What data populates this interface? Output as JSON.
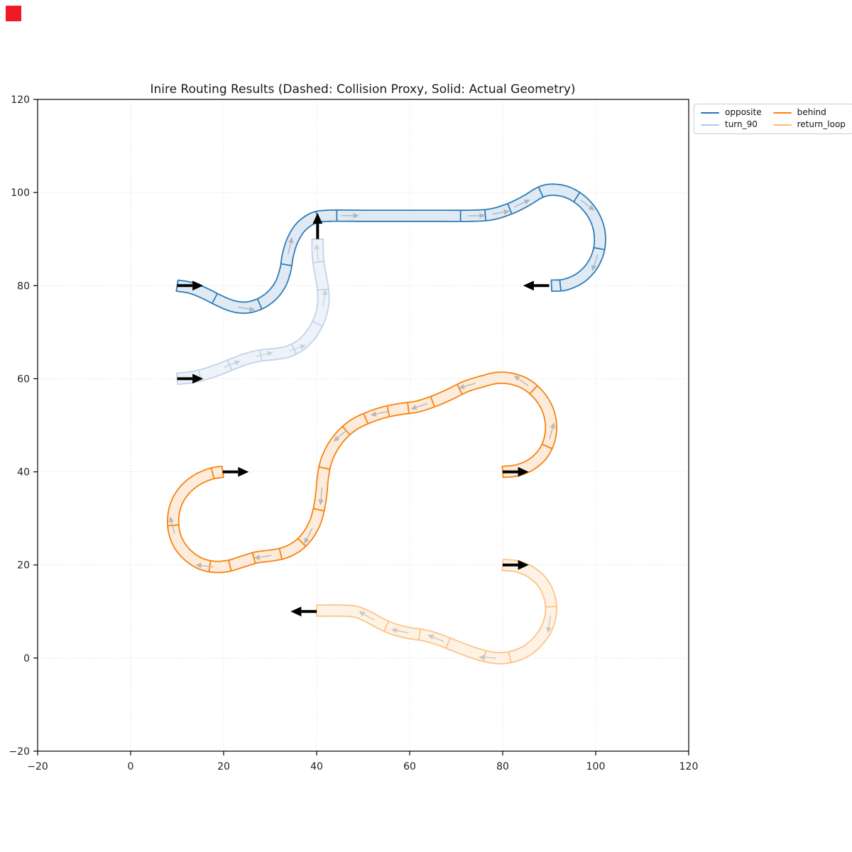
{
  "title": "Inire Routing Results (Dashed: Collision Proxy, Solid: Actual Geometry)",
  "marker": {
    "name": "red-corner-marker",
    "color": "#ee1b24"
  },
  "legend": {
    "position": "upper-right-outside",
    "entries": [
      {
        "label": "opposite",
        "color": "#1f77b4"
      },
      {
        "label": "turn_90",
        "color": "#aec7e8"
      },
      {
        "label": "behind",
        "color": "#ff7f0e"
      },
      {
        "label": "return_loop",
        "color": "#ffbb78"
      }
    ]
  },
  "chart_data": {
    "type": "line",
    "title": "Inire Routing Results (Dashed: Collision Proxy, Solid: Actual Geometry)",
    "xlabel": "",
    "ylabel": "",
    "xlim": [
      -20,
      120
    ],
    "ylim": [
      -20,
      120
    ],
    "x_ticks": [
      -20,
      0,
      20,
      40,
      60,
      80,
      100,
      120
    ],
    "y_ticks": [
      -20,
      0,
      20,
      40,
      60,
      80,
      100,
      120
    ],
    "x_tick_labels": [
      "−20",
      "0",
      "20",
      "40",
      "60",
      "80",
      "100",
      "120"
    ],
    "y_tick_labels": [
      "−20",
      "0",
      "20",
      "40",
      "60",
      "80",
      "100",
      "120"
    ],
    "grid": "dotted",
    "pose_arrow": {
      "color": "#000000",
      "length": 5.6,
      "head_length": 2.3,
      "head_half_width": 1.05
    },
    "routes": [
      {
        "name": "opposite",
        "stroke": "#2e7cb8",
        "fill": "#dfeaf5",
        "arrow_color": "#b2b6ba",
        "tube_width": 2.4,
        "start_pose": {
          "x": 10,
          "y": 80,
          "heading_deg": 0
        },
        "end_pose": {
          "x": 90,
          "y": 80,
          "heading_deg": 180
        },
        "waypoints": [
          [
            10,
            80
          ],
          [
            13,
            79.5
          ],
          [
            16,
            78.3
          ],
          [
            19,
            76.8
          ],
          [
            22,
            75.6
          ],
          [
            25,
            75.3
          ],
          [
            28,
            76.2
          ],
          [
            30.5,
            78
          ],
          [
            32.3,
            80.5
          ],
          [
            33.3,
            83.5
          ],
          [
            33.8,
            86.5
          ],
          [
            34.8,
            89.7
          ],
          [
            36.6,
            92.6
          ],
          [
            39.3,
            94.5
          ],
          [
            42.5,
            95
          ],
          [
            50,
            95
          ],
          [
            58,
            95
          ],
          [
            66,
            95
          ],
          [
            73,
            95
          ],
          [
            77.5,
            95.3
          ],
          [
            81.5,
            96.5
          ],
          [
            85,
            98.2
          ],
          [
            88,
            100
          ],
          [
            90.5,
            100.6
          ],
          [
            93.8,
            100.1
          ],
          [
            97,
            98.2
          ],
          [
            99.5,
            95.2
          ],
          [
            100.8,
            91.6
          ],
          [
            100.7,
            87.7
          ],
          [
            99.2,
            84.2
          ],
          [
            96.6,
            81.6
          ],
          [
            93.4,
            80.2
          ],
          [
            90.5,
            80
          ]
        ],
        "dividers": [
          0.068,
          0.148,
          0.232,
          0.335,
          0.368,
          0.578,
          0.62,
          0.663,
          0.723,
          0.787,
          0.888,
          0.985
        ],
        "arrows": [
          0.11,
          0.25,
          0.376,
          0.59,
          0.632,
          0.671,
          0.795,
          0.898
        ]
      },
      {
        "name": "turn_90",
        "stroke": "#c2d3eb",
        "fill": "#eef3fa",
        "arrow_color": "#ccd2dc",
        "tube_width": 2.4,
        "start_pose": {
          "x": 10,
          "y": 60,
          "heading_deg": 0
        },
        "end_pose": {
          "x": 40.2,
          "y": 90,
          "heading_deg": 90
        },
        "waypoints": [
          [
            10,
            60
          ],
          [
            13,
            60.3
          ],
          [
            16,
            61
          ],
          [
            19,
            62
          ],
          [
            22,
            63.2
          ],
          [
            25,
            64.3
          ],
          [
            28,
            65
          ],
          [
            31,
            65.3
          ],
          [
            34,
            65.9
          ],
          [
            36.8,
            67.4
          ],
          [
            39,
            69.8
          ],
          [
            40.6,
            72.8
          ],
          [
            41.4,
            76
          ],
          [
            41.4,
            79
          ],
          [
            40.9,
            82
          ],
          [
            40.4,
            85
          ],
          [
            40.2,
            87.5
          ],
          [
            40.2,
            90
          ]
        ],
        "dividers": [
          0.095,
          0.225,
          0.36,
          0.5,
          0.645,
          0.79,
          0.905
        ],
        "arrows": [
          0.2,
          0.34,
          0.48,
          0.72,
          0.91
        ]
      },
      {
        "name": "behind",
        "stroke": "#f8830f",
        "fill": "#fdebdb",
        "arrow_color": "#bcb8b2",
        "tube_width": 2.4,
        "start_pose": {
          "x": 80,
          "y": 40,
          "heading_deg": 0
        },
        "end_pose": {
          "x": 19.8,
          "y": 40,
          "heading_deg": 0
        },
        "waypoints": [
          [
            80,
            40
          ],
          [
            83,
            40.3
          ],
          [
            86,
            41.5
          ],
          [
            88.5,
            43.7
          ],
          [
            90,
            46.7
          ],
          [
            90.4,
            50
          ],
          [
            89.7,
            53.3
          ],
          [
            88,
            56.2
          ],
          [
            85.4,
            58.6
          ],
          [
            82.3,
            59.9
          ],
          [
            79,
            60.2
          ],
          [
            75.5,
            59.4
          ],
          [
            72,
            58.3
          ],
          [
            68.5,
            56.6
          ],
          [
            65,
            55.1
          ],
          [
            61.5,
            54
          ],
          [
            58,
            53.5
          ],
          [
            54.5,
            52.8
          ],
          [
            51,
            51.6
          ],
          [
            47.8,
            50
          ],
          [
            45.2,
            47.7
          ],
          [
            43.2,
            44.9
          ],
          [
            41.9,
            41.8
          ],
          [
            41.3,
            38.5
          ],
          [
            41,
            35.3
          ],
          [
            40.5,
            32.1
          ],
          [
            39.6,
            29
          ],
          [
            38,
            26.2
          ],
          [
            35.8,
            24
          ],
          [
            33,
            22.6
          ],
          [
            30,
            22
          ],
          [
            27,
            21.6
          ],
          [
            24,
            20.7
          ],
          [
            21,
            19.8
          ],
          [
            18,
            19.6
          ],
          [
            15,
            20.3
          ],
          [
            12.4,
            22
          ],
          [
            10.4,
            24.4
          ],
          [
            9.3,
            27.4
          ],
          [
            9.2,
            30.6
          ],
          [
            10,
            33.6
          ],
          [
            11.8,
            36.3
          ],
          [
            14.3,
            38.3
          ],
          [
            17.3,
            39.6
          ],
          [
            19.8,
            40
          ]
        ],
        "dividers": [
          0.08,
          0.172,
          0.288,
          0.332,
          0.369,
          0.399,
          0.434,
          0.468,
          0.533,
          0.595,
          0.65,
          0.686,
          0.726,
          0.763,
          0.793,
          0.88,
          0.985
        ],
        "arrows": [
          0.091,
          0.182,
          0.263,
          0.34,
          0.4,
          0.467,
          0.562,
          0.624,
          0.7,
          0.788,
          0.868
        ]
      },
      {
        "name": "return_loop",
        "stroke": "#fcc48b",
        "fill": "#fdf2e4",
        "arrow_color": "#cdc8c2",
        "tube_width": 2.4,
        "start_pose": {
          "x": 80,
          "y": 20,
          "heading_deg": 0
        },
        "end_pose": {
          "x": 40,
          "y": 10,
          "heading_deg": 180
        },
        "waypoints": [
          [
            80,
            20
          ],
          [
            83,
            19.7
          ],
          [
            86,
            18.5
          ],
          [
            88.5,
            16.3
          ],
          [
            90,
            13.3
          ],
          [
            90.4,
            10
          ],
          [
            89.6,
            6.7
          ],
          [
            87.8,
            3.9
          ],
          [
            85.2,
            1.6
          ],
          [
            82,
            0.3
          ],
          [
            78.8,
            0
          ],
          [
            75.5,
            0.6
          ],
          [
            72.4,
            1.6
          ],
          [
            69.3,
            2.8
          ],
          [
            66.2,
            4
          ],
          [
            63,
            4.9
          ],
          [
            59.8,
            5.4
          ],
          [
            56.6,
            6.2
          ],
          [
            53.6,
            7.5
          ],
          [
            50.8,
            9
          ],
          [
            48.2,
            10
          ],
          [
            45,
            10.2
          ],
          [
            42.5,
            10.2
          ],
          [
            40,
            10.2
          ]
        ],
        "dividers": [
          0.207,
          0.413,
          0.487,
          0.6,
          0.687,
          0.787
        ],
        "arrows": [
          0.233,
          0.453,
          0.613,
          0.72,
          0.827
        ]
      }
    ]
  }
}
